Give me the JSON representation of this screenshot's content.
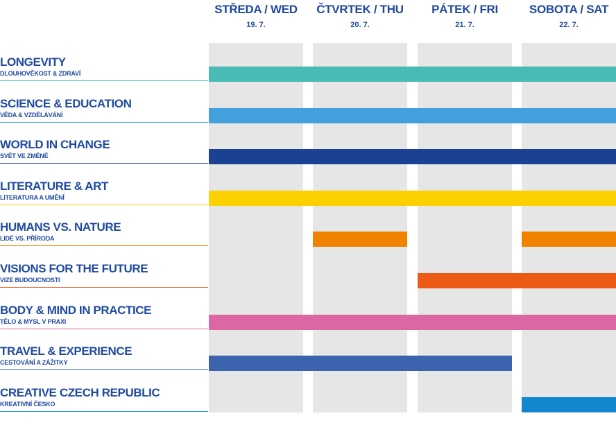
{
  "days": [
    {
      "name": "STŘEDA / WED",
      "date": "19. 7."
    },
    {
      "name": "ČTVRTEK / THU",
      "date": "20. 7."
    },
    {
      "name": "PÁTEK / FRI",
      "date": "21. 7."
    },
    {
      "name": "SOBOTA / SAT",
      "date": "22. 7."
    }
  ],
  "rows": [
    {
      "title": "LONGEVITY",
      "subtitle": "DLOUHOVĚKOST & ZDRAVÍ",
      "color": "#49bbb6",
      "days": [
        "STŘEDA / WED",
        "ČTVRTEK / THU",
        "PÁTEK / FRI",
        "SOBOTA / SAT"
      ]
    },
    {
      "title": "SCIENCE & EDUCATION",
      "subtitle": "VĚDA & VZDĚLÁVÁNÍ",
      "color": "#42a1dc",
      "days": [
        "STŘEDA / WED",
        "ČTVRTEK / THU",
        "PÁTEK / FRI",
        "SOBOTA / SAT"
      ]
    },
    {
      "title": "WORLD IN CHANGE",
      "subtitle": "SVĚT VE ZMĚNĚ",
      "color": "#1b4193",
      "days": [
        "STŘEDA / WED",
        "ČTVRTEK / THU",
        "PÁTEK / FRI",
        "SOBOTA / SAT"
      ]
    },
    {
      "title": "LITERATURE & ART",
      "subtitle": "LITERATURA A UMĚNÍ",
      "color": "#fdd100",
      "days": [
        "STŘEDA / WED",
        "ČTVRTEK / THU",
        "PÁTEK / FRI",
        "SOBOTA / SAT"
      ]
    },
    {
      "title": "HUMANS VS. NATURE",
      "subtitle": "LIDÉ VS. PŘÍRODA",
      "color": "#f08200",
      "days": [
        "ČTVRTEK / THU",
        "SOBOTA / SAT"
      ]
    },
    {
      "title": "VISIONS FOR THE FUTURE",
      "subtitle": "VIZE BUDOUCNOSTI",
      "color": "#ec5a16",
      "days": [
        "PÁTEK / FRI",
        "SOBOTA / SAT"
      ]
    },
    {
      "title": "BODY & MIND IN PRACTICE",
      "subtitle": "TĚLO & MYSL V PRAXI",
      "color": "#dc67a4",
      "days": [
        "STŘEDA / WED",
        "ČTVRTEK / THU",
        "PÁTEK / FRI",
        "SOBOTA / SAT"
      ]
    },
    {
      "title": "TRAVEL & EXPERIENCE",
      "subtitle": "CESTOVÁNÍ A ZÁŽITKY",
      "color": "#3b63ae",
      "days": [
        "STŘEDA / WED",
        "ČTVRTEK / THU",
        "PÁTEK / FRI"
      ]
    },
    {
      "title": "CREATIVE CZECH REPUBLIC",
      "subtitle": "KREATIVNÍ ČESKO",
      "color": "#1287d0",
      "days": [
        "SOBOTA / SAT"
      ]
    }
  ]
}
